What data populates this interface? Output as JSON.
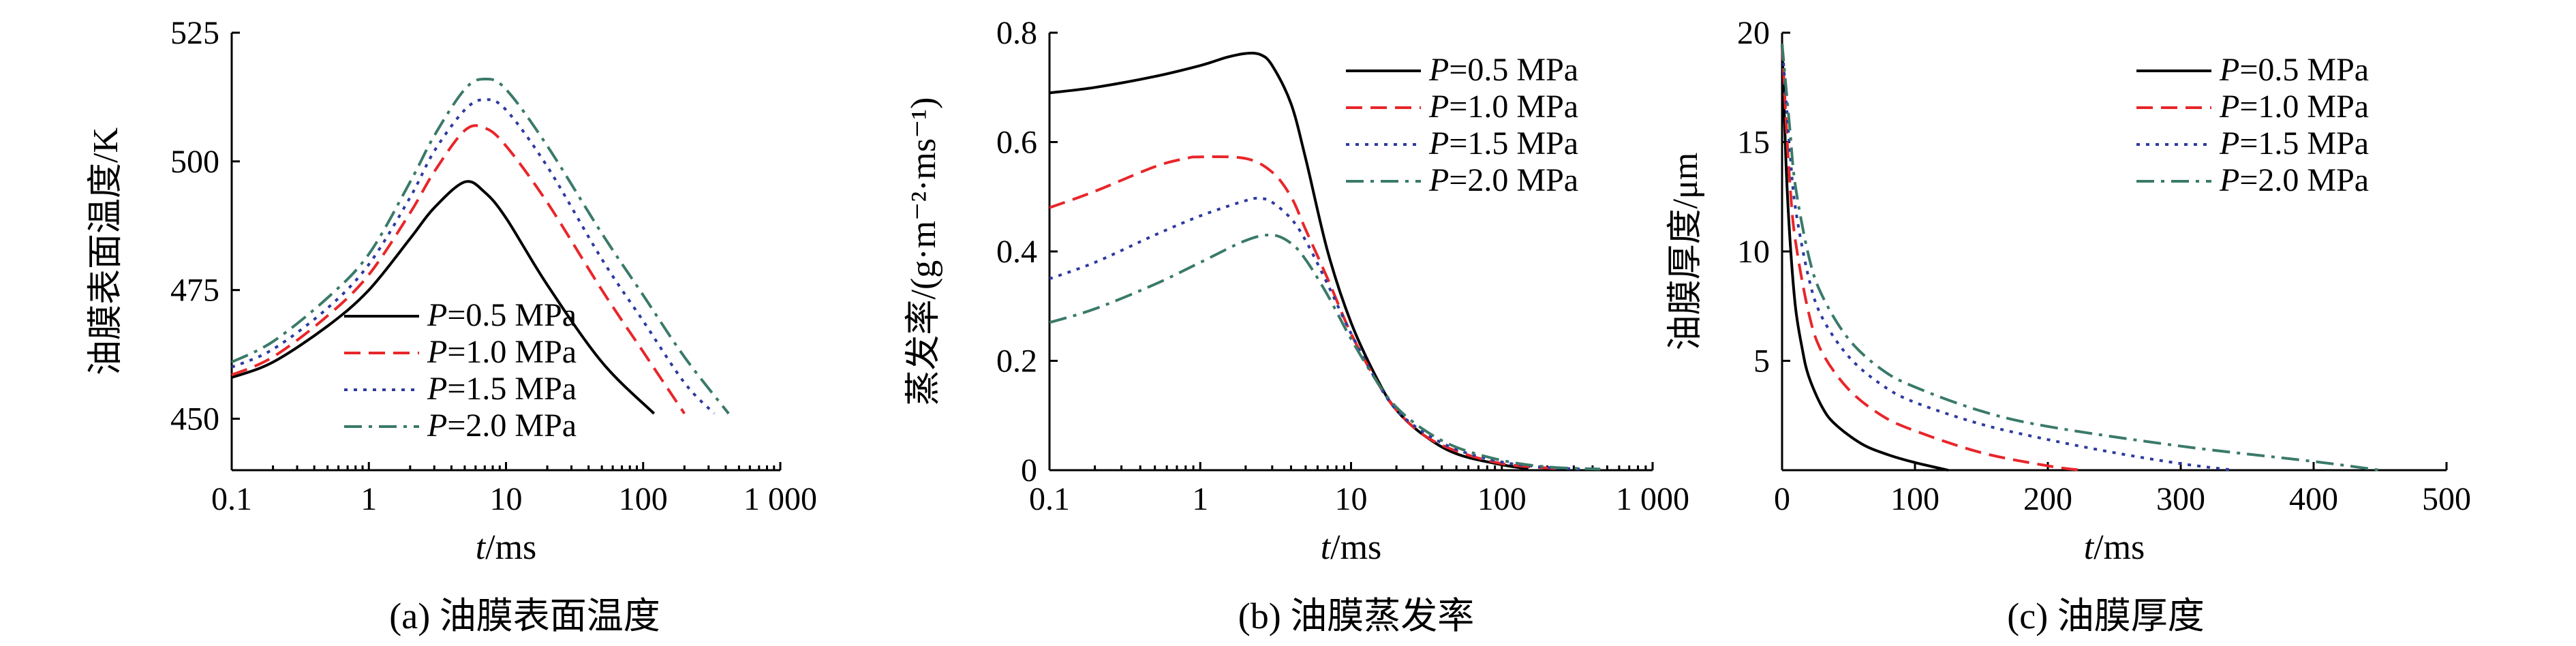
{
  "chart_data": [
    {
      "id": "a",
      "type": "line",
      "title": "",
      "caption": "(a) 油膜表面温度",
      "xlabel_italic": "t",
      "xlabel_unit": "/ms",
      "ylabel": "油膜表面温度/K",
      "xscale": "log",
      "xlim": [
        0.1,
        1000
      ],
      "ylim": [
        440,
        525
      ],
      "xticks": [
        0.1,
        1,
        10,
        100,
        1000
      ],
      "xtick_labels": [
        "0.1",
        "1",
        "10",
        "100",
        "1 000"
      ],
      "yticks": [
        450,
        475,
        500,
        525
      ],
      "ytick_labels": [
        "450",
        "475",
        "500",
        "525"
      ],
      "legend_position": "bottom-center",
      "series": [
        {
          "name": "0.5 MPa",
          "color": "#000000",
          "dash": "solid",
          "x": [
            0.1,
            0.2,
            0.5,
            1,
            2,
            3,
            5,
            7,
            10,
            20,
            50,
            120
          ],
          "y": [
            458,
            461,
            468,
            475,
            485,
            491,
            496,
            494,
            489,
            476,
            461,
            451
          ]
        },
        {
          "name": "1.0 MPa",
          "color": "#e8262a",
          "dash": "dashed",
          "x": [
            0.1,
            0.2,
            0.5,
            1,
            2,
            3,
            5,
            7,
            10,
            20,
            50,
            100,
            200
          ],
          "y": [
            458.5,
            462,
            470,
            478,
            490,
            498,
            506,
            506.5,
            503,
            492,
            475,
            463,
            451
          ]
        },
        {
          "name": "1.5 MPa",
          "color": "#2d3aa0",
          "dash": "dotted",
          "x": [
            0.1,
            0.2,
            0.5,
            1,
            2,
            3,
            5,
            7,
            10,
            20,
            50,
            100,
            200,
            330
          ],
          "y": [
            460,
            463.5,
            471.5,
            480,
            493,
            502,
            510,
            512,
            510,
            499,
            481,
            469,
            457,
            451
          ]
        },
        {
          "name": "2.0 MPa",
          "color": "#3a7a6a",
          "dash": "dashdot",
          "x": [
            0.1,
            0.2,
            0.5,
            1,
            2,
            3,
            5,
            7,
            10,
            20,
            50,
            100,
            200,
            420
          ],
          "y": [
            461,
            465,
            473.5,
            482,
            496,
            505,
            514,
            516,
            514,
            503,
            486,
            474,
            462,
            451
          ]
        }
      ]
    },
    {
      "id": "b",
      "type": "line",
      "title": "",
      "caption": "(b) 油膜蒸发率",
      "xlabel_italic": "t",
      "xlabel_unit": "/ms",
      "ylabel": "蒸发率/(g·m⁻²·ms⁻¹)",
      "xscale": "log",
      "xlim": [
        0.1,
        1000
      ],
      "ylim": [
        0,
        0.8
      ],
      "xticks": [
        0.1,
        1,
        10,
        100,
        1000
      ],
      "xtick_labels": [
        "0.1",
        "1",
        "10",
        "100",
        "1 000"
      ],
      "yticks": [
        0,
        0.2,
        0.4,
        0.6,
        0.8
      ],
      "ytick_labels": [
        "0",
        "0.2",
        "0.4",
        "0.6",
        "0.8"
      ],
      "legend_position": "top-right",
      "series": [
        {
          "name": "0.5 MPa",
          "color": "#000000",
          "dash": "solid",
          "x": [
            0.1,
            0.2,
            0.5,
            1,
            1.5,
            2,
            2.5,
            3,
            4,
            5,
            7,
            10,
            15,
            20,
            30,
            50,
            100,
            150
          ],
          "y": [
            0.69,
            0.7,
            0.72,
            0.74,
            0.755,
            0.762,
            0.76,
            0.74,
            0.67,
            0.57,
            0.4,
            0.27,
            0.165,
            0.11,
            0.065,
            0.03,
            0.01,
            0.003
          ]
        },
        {
          "name": "1.0 MPa",
          "color": "#e8262a",
          "dash": "dashed",
          "x": [
            0.1,
            0.2,
            0.5,
            0.8,
            1,
            2,
            3,
            4,
            5,
            7,
            10,
            15,
            20,
            30,
            50,
            100,
            200,
            250
          ],
          "y": [
            0.48,
            0.51,
            0.555,
            0.57,
            0.573,
            0.57,
            0.545,
            0.5,
            0.44,
            0.35,
            0.25,
            0.16,
            0.11,
            0.065,
            0.035,
            0.012,
            0.004,
            0.002
          ]
        },
        {
          "name": "1.5 MPa",
          "color": "#2d3aa0",
          "dash": "dotted",
          "x": [
            0.1,
            0.2,
            0.5,
            1,
            2,
            2.5,
            3,
            4,
            5,
            7,
            10,
            15,
            20,
            30,
            50,
            100,
            200,
            350
          ],
          "y": [
            0.35,
            0.38,
            0.43,
            0.465,
            0.493,
            0.497,
            0.49,
            0.46,
            0.42,
            0.34,
            0.25,
            0.16,
            0.11,
            0.07,
            0.038,
            0.015,
            0.005,
            0.002
          ]
        },
        {
          "name": "2.0 MPa",
          "color": "#3a7a6a",
          "dash": "dashdot",
          "x": [
            0.1,
            0.2,
            0.5,
            1,
            2,
            3,
            4,
            5,
            7,
            10,
            15,
            20,
            30,
            50,
            100,
            200,
            450
          ],
          "y": [
            0.27,
            0.295,
            0.34,
            0.38,
            0.42,
            0.43,
            0.415,
            0.385,
            0.32,
            0.24,
            0.16,
            0.115,
            0.075,
            0.042,
            0.018,
            0.006,
            0.002
          ]
        }
      ]
    },
    {
      "id": "c",
      "type": "line",
      "title": "",
      "caption": "(c) 油膜厚度",
      "xlabel_italic": "t",
      "xlabel_unit": "/ms",
      "ylabel": "油膜厚度/μm",
      "xscale": "linear",
      "xlim": [
        0,
        500
      ],
      "ylim": [
        0,
        20
      ],
      "xticks": [
        0,
        100,
        200,
        300,
        400,
        500
      ],
      "xtick_labels": [
        "0",
        "100",
        "200",
        "300",
        "400",
        "500"
      ],
      "yticks": [
        5,
        10,
        15,
        20
      ],
      "ytick_labels": [
        "5",
        "10",
        "15",
        "20"
      ],
      "legend_position": "top-right",
      "series": [
        {
          "name": "0.5 MPa",
          "color": "#000000",
          "dash": "solid",
          "x": [
            0,
            3,
            6,
            10,
            15,
            20,
            30,
            40,
            60,
            80,
            100,
            125
          ],
          "y": [
            19.5,
            14,
            10.5,
            7.5,
            5.6,
            4.3,
            2.9,
            2.1,
            1.2,
            0.7,
            0.35,
            0
          ]
        },
        {
          "name": "1.0 MPa",
          "color": "#e8262a",
          "dash": "dashed",
          "x": [
            0,
            3,
            6,
            10,
            20,
            30,
            50,
            75,
            100,
            150,
            200,
            225
          ],
          "y": [
            19.5,
            16,
            13,
            10.5,
            7.2,
            5.4,
            3.7,
            2.5,
            1.8,
            0.8,
            0.2,
            0
          ]
        },
        {
          "name": "1.5 MPa",
          "color": "#2d3aa0",
          "dash": "dotted",
          "x": [
            0,
            3,
            6,
            10,
            20,
            30,
            50,
            75,
            100,
            150,
            200,
            250,
            300,
            340
          ],
          "y": [
            19.5,
            17,
            14.5,
            12,
            8.8,
            7,
            5.2,
            3.9,
            3.1,
            2.1,
            1.4,
            0.8,
            0.3,
            0
          ]
        },
        {
          "name": "2.0 MPa",
          "color": "#3a7a6a",
          "dash": "dashdot",
          "x": [
            0,
            3,
            6,
            10,
            20,
            30,
            50,
            75,
            100,
            150,
            200,
            300,
            400,
            450
          ],
          "y": [
            19.5,
            17.5,
            15.5,
            13,
            9.8,
            8,
            6,
            4.6,
            3.8,
            2.7,
            2,
            1.1,
            0.4,
            0
          ]
        }
      ]
    }
  ]
}
